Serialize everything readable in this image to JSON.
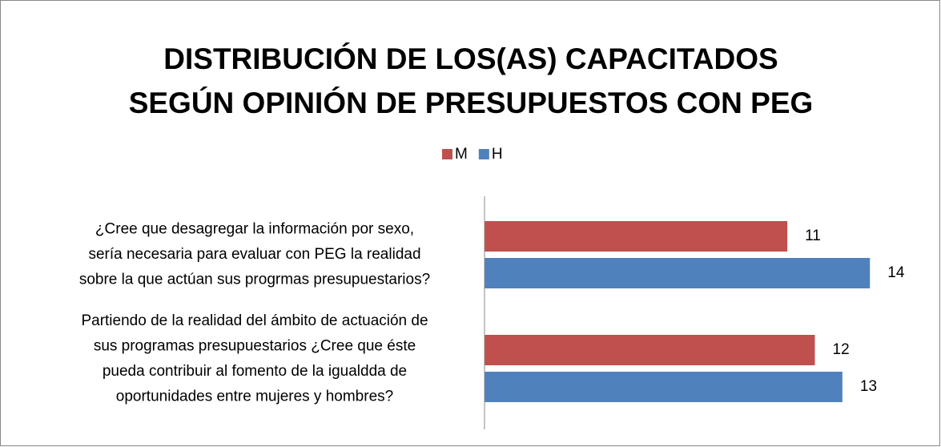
{
  "chart_data": {
    "type": "barh",
    "title": [
      "DISTRIBUCIÓN DE LOS(AS) CAPACITADOS",
      "SEGÚN OPINIÓN DE PRESUPUESTOS CON PEG"
    ],
    "categories": [
      [
        "¿Cree que desagregar la información por sexo,",
        "sería necesaria para evaluar con PEG la realidad",
        "sobre la que actúan sus progrmas presupuestarios?"
      ],
      [
        "Partiendo de la realidad del ámbito de actuación de",
        "sus programas presupuestarios ¿Cree que éste",
        "pueda contribuir al fomento de la igualdda de",
        "oportunidades entre mujeres y hombres?"
      ]
    ],
    "series": [
      {
        "name": "M",
        "color": "#c0504d",
        "values": [
          11,
          12
        ]
      },
      {
        "name": "H",
        "color": "#4f81bd",
        "values": [
          14,
          13
        ]
      }
    ],
    "xlim": [
      0,
      16
    ],
    "legend": "top"
  }
}
